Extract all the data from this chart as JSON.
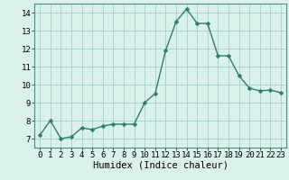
{
  "title": "",
  "xlabel": "Humidex (Indice chaleur)",
  "ylabel": "",
  "x": [
    0,
    1,
    2,
    3,
    4,
    5,
    6,
    7,
    8,
    9,
    10,
    11,
    12,
    13,
    14,
    15,
    16,
    17,
    18,
    19,
    20,
    21,
    22,
    23
  ],
  "y": [
    7.2,
    8.0,
    7.0,
    7.1,
    7.6,
    7.5,
    7.7,
    7.8,
    7.8,
    7.8,
    9.0,
    9.5,
    11.9,
    13.5,
    14.2,
    13.4,
    13.4,
    11.6,
    11.6,
    10.5,
    9.8,
    9.65,
    9.7,
    9.55
  ],
  "line_color": "#2d7d6e",
  "marker": "D",
  "marker_size": 2.5,
  "bg_color": "#daf0eb",
  "grid_color": "#aad4cc",
  "axes_color": "#4a9080",
  "ylim": [
    6.5,
    14.5
  ],
  "xlim": [
    -0.5,
    23.5
  ],
  "yticks": [
    7,
    8,
    9,
    10,
    11,
    12,
    13,
    14
  ],
  "xticks": [
    0,
    1,
    2,
    3,
    4,
    5,
    6,
    7,
    8,
    9,
    10,
    11,
    12,
    13,
    14,
    15,
    16,
    17,
    18,
    19,
    20,
    21,
    22,
    23
  ],
  "tick_fontsize": 6.5,
  "label_fontsize": 7.5
}
